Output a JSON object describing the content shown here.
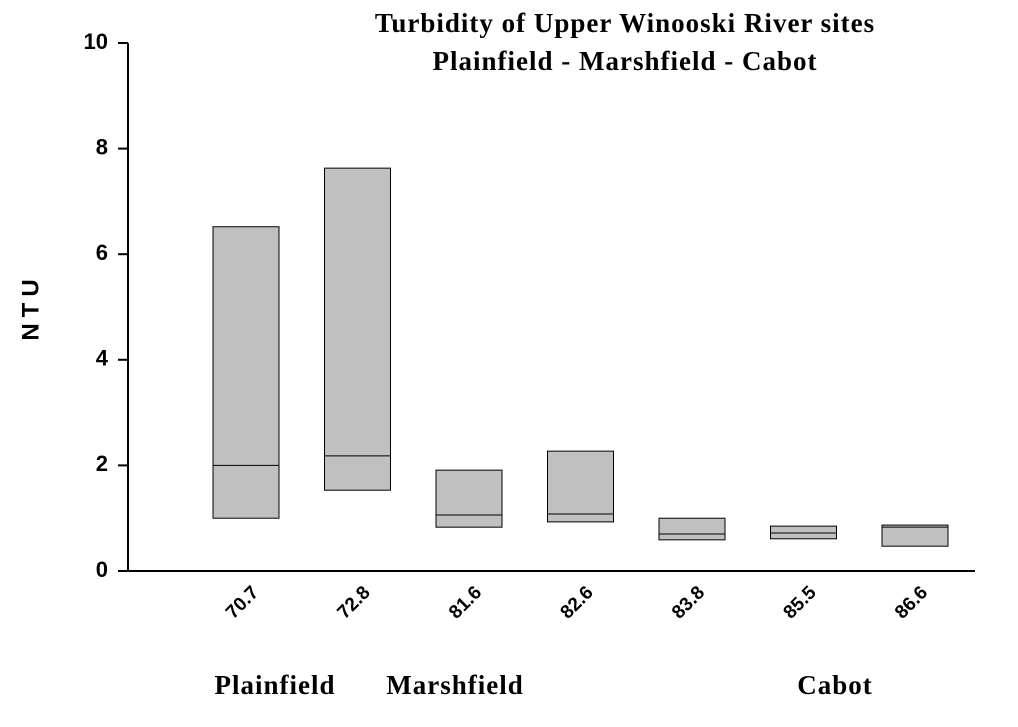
{
  "chart_data": {
    "type": "box",
    "title": "Turbidity of Upper Winooski River sites",
    "subtitle": "Plainfield - Marshfield - Cabot",
    "y_label": "NTU",
    "categories": [
      "70.7",
      "72.8",
      "81.6",
      "82.6",
      "83.8",
      "85.5",
      "86.6"
    ],
    "lows": [
      1.0,
      1.53,
      0.83,
      0.93,
      0.59,
      0.61,
      0.47
    ],
    "medians": [
      2.0,
      2.18,
      1.06,
      1.08,
      0.7,
      0.72,
      0.83
    ],
    "highs": [
      6.52,
      7.63,
      1.91,
      2.27,
      1.0,
      0.85,
      0.87
    ],
    "color": "#c0c0c0",
    "groups": [
      "Plainfield",
      "Marshfield",
      "Cabot"
    ],
    "ylim": [
      0,
      10
    ],
    "yticks": [
      0,
      2,
      4,
      6,
      8,
      10
    ],
    "grid": false
  }
}
